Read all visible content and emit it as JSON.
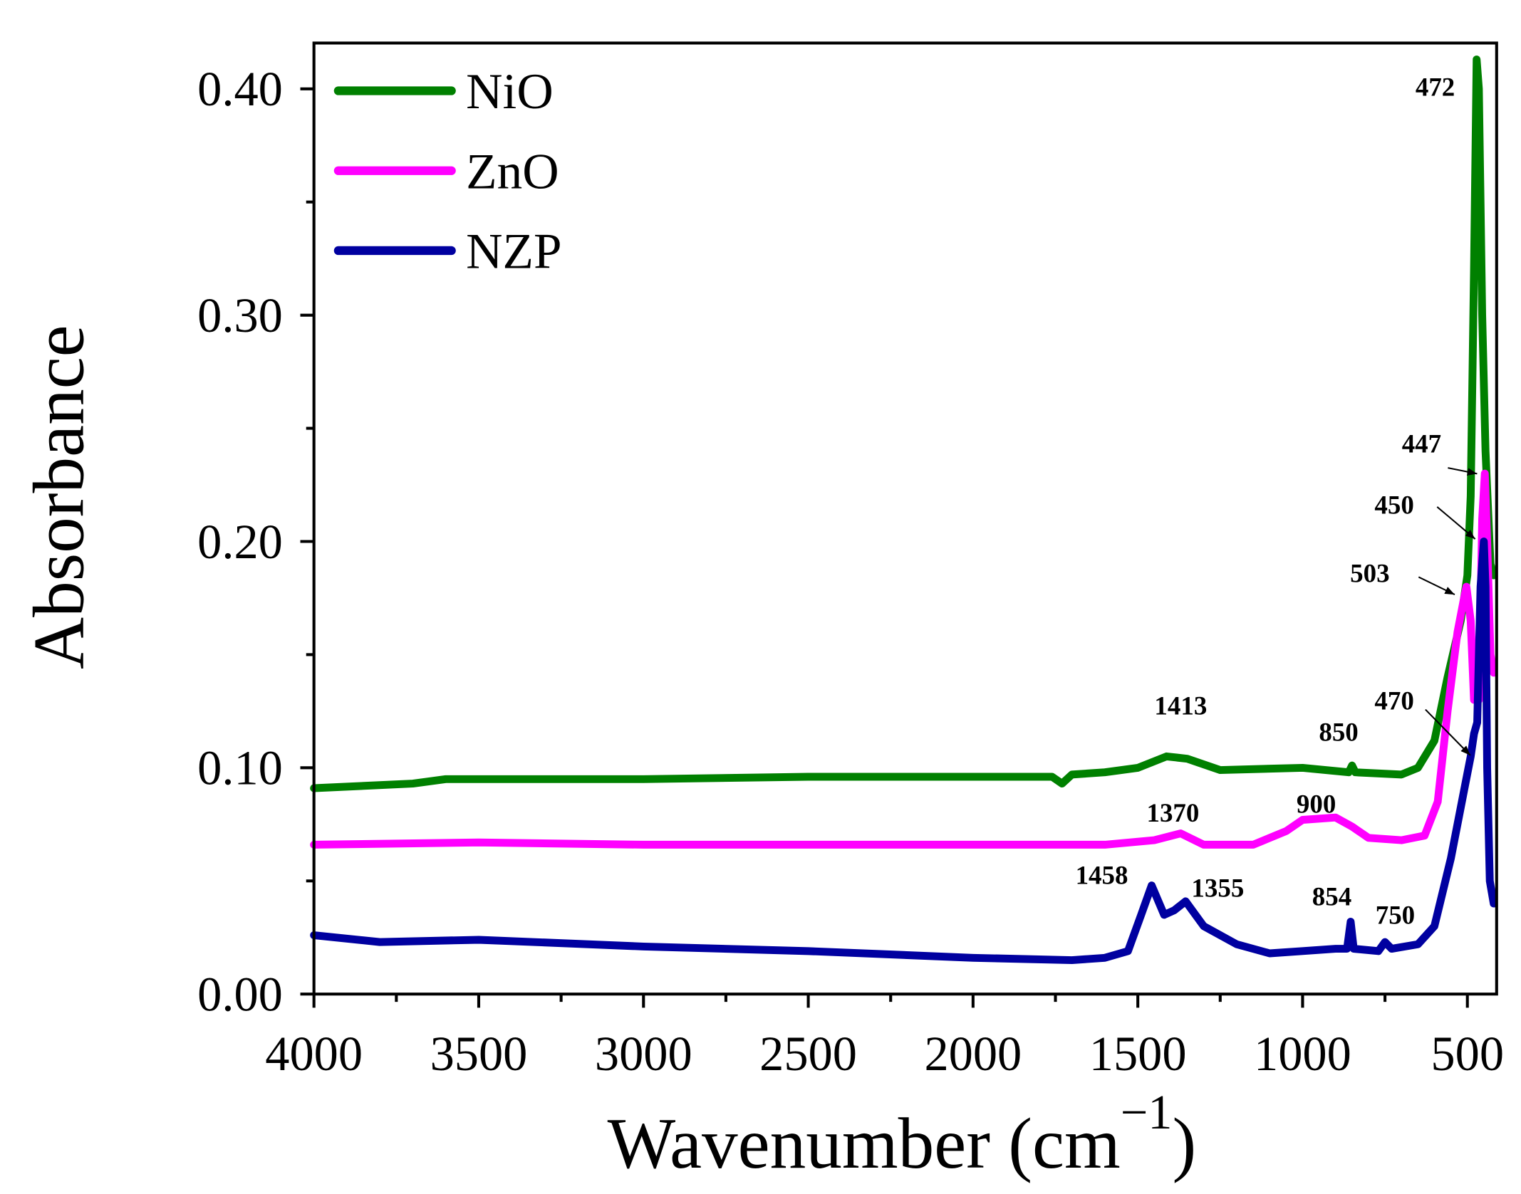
{
  "chart_data": {
    "type": "line",
    "title": "",
    "xlabel": "Wavenumber (cm",
    "xlabel_sup": "−1",
    "xlabel_close": ")",
    "ylabel": "Absorbance",
    "xlim": [
      4000,
      410
    ],
    "ylim": [
      0,
      0.42
    ],
    "grid": false,
    "legend_placement": "top-left",
    "x_ticks": [
      4000,
      3500,
      3000,
      2500,
      2000,
      1500,
      1000,
      500
    ],
    "x_tick_labels": [
      "4000",
      "3500",
      "3000",
      "2500",
      "2000",
      "1500",
      "1000",
      "500"
    ],
    "y_ticks": [
      0,
      0.1,
      0.2,
      0.3,
      0.4
    ],
    "y_tick_labels": [
      "0.00",
      "0.10",
      "0.20",
      "0.30",
      "0.40"
    ],
    "series": [
      {
        "name": "NiO",
        "color": "#008000",
        "x": [
          4000,
          3700,
          3600,
          3000,
          2500,
          2000,
          1760,
          1730,
          1700,
          1600,
          1500,
          1413,
          1350,
          1250,
          1000,
          860,
          850,
          840,
          700,
          650,
          600,
          560,
          520,
          500,
          490,
          480,
          472,
          465,
          455,
          445,
          430,
          420
        ],
        "y": [
          0.091,
          0.093,
          0.095,
          0.095,
          0.096,
          0.096,
          0.096,
          0.093,
          0.097,
          0.098,
          0.1,
          0.105,
          0.104,
          0.099,
          0.1,
          0.098,
          0.101,
          0.098,
          0.097,
          0.1,
          0.112,
          0.14,
          0.165,
          0.185,
          0.22,
          0.32,
          0.413,
          0.4,
          0.3,
          0.24,
          0.19,
          0.185
        ]
      },
      {
        "name": "ZnO",
        "color": "#ff00ff",
        "x": [
          4000,
          3500,
          3000,
          2000,
          1600,
          1450,
          1370,
          1300,
          1150,
          1050,
          1000,
          900,
          850,
          800,
          700,
          630,
          590,
          560,
          530,
          510,
          503,
          490,
          480,
          465,
          455,
          447,
          440,
          430,
          420
        ],
        "y": [
          0.066,
          0.067,
          0.066,
          0.066,
          0.066,
          0.068,
          0.071,
          0.066,
          0.066,
          0.072,
          0.077,
          0.078,
          0.074,
          0.069,
          0.068,
          0.07,
          0.085,
          0.125,
          0.16,
          0.175,
          0.18,
          0.165,
          0.13,
          0.13,
          0.21,
          0.23,
          0.2,
          0.15,
          0.142
        ]
      },
      {
        "name": "NZP",
        "color": "#0000a0",
        "x": [
          4000,
          3800,
          3500,
          3000,
          2500,
          2000,
          1700,
          1600,
          1530,
          1490,
          1458,
          1420,
          1390,
          1355,
          1300,
          1200,
          1100,
          1000,
          900,
          865,
          854,
          845,
          770,
          750,
          730,
          650,
          600,
          550,
          510,
          490,
          480,
          470,
          460,
          450,
          445,
          440,
          432,
          420
        ],
        "y": [
          0.026,
          0.023,
          0.024,
          0.021,
          0.019,
          0.016,
          0.015,
          0.016,
          0.019,
          0.035,
          0.048,
          0.035,
          0.037,
          0.041,
          0.03,
          0.022,
          0.018,
          0.019,
          0.02,
          0.02,
          0.032,
          0.02,
          0.019,
          0.023,
          0.02,
          0.022,
          0.03,
          0.06,
          0.09,
          0.105,
          0.115,
          0.12,
          0.18,
          0.2,
          0.18,
          0.1,
          0.05,
          0.04
        ]
      }
    ],
    "annotations": [
      {
        "text": "472",
        "series": "NiO"
      },
      {
        "text": "447",
        "series": "ZnO"
      },
      {
        "text": "450",
        "series": "NZP"
      },
      {
        "text": "503",
        "series": "ZnO"
      },
      {
        "text": "470",
        "series": "NZP"
      },
      {
        "text": "1413",
        "series": "NiO"
      },
      {
        "text": "850",
        "series": "NiO"
      },
      {
        "text": "1370",
        "series": "ZnO"
      },
      {
        "text": "900",
        "series": "ZnO"
      },
      {
        "text": "1458",
        "series": "NZP"
      },
      {
        "text": "1355",
        "series": "NZP"
      },
      {
        "text": "854",
        "series": "NZP"
      },
      {
        "text": "750",
        "series": "NZP"
      }
    ]
  }
}
